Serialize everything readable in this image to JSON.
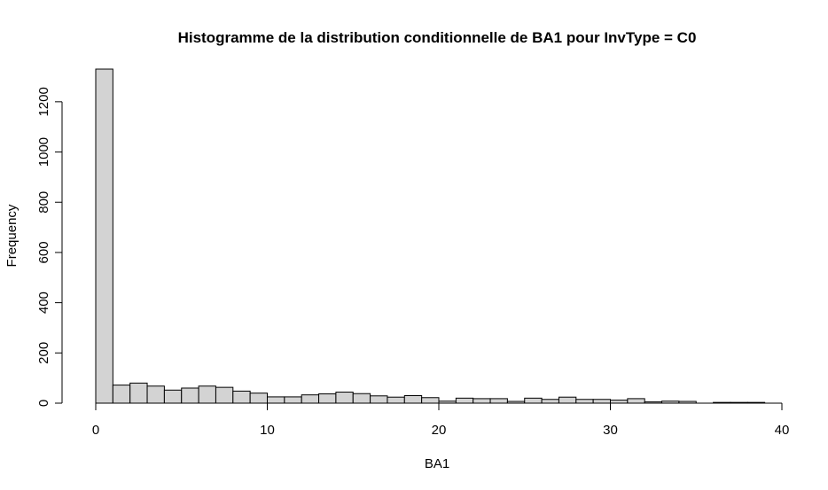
{
  "chart_data": {
    "type": "bar",
    "title": "Histogramme de la distribution conditionnelle de BA1 pour InvType = C0",
    "xlabel": "BA1",
    "ylabel": "Frequency",
    "bin_width": 1,
    "bin_starts": [
      0,
      1,
      2,
      3,
      4,
      5,
      6,
      7,
      8,
      9,
      10,
      11,
      12,
      13,
      14,
      15,
      16,
      17,
      18,
      19,
      20,
      21,
      22,
      23,
      24,
      25,
      26,
      27,
      28,
      29,
      30,
      31,
      32,
      33,
      34,
      35,
      36,
      37,
      38
    ],
    "values": [
      1330,
      72,
      80,
      68,
      52,
      60,
      68,
      63,
      48,
      40,
      25,
      25,
      33,
      37,
      44,
      38,
      29,
      24,
      30,
      22,
      8,
      20,
      18,
      18,
      7,
      20,
      15,
      24,
      15,
      15,
      12,
      18,
      5,
      8,
      7,
      0,
      3,
      3,
      3
    ],
    "xlim": [
      0,
      40
    ],
    "ylim": [
      0,
      1330
    ],
    "x_ticks": [
      0,
      10,
      20,
      30,
      40
    ],
    "y_ticks": [
      0,
      200,
      400,
      600,
      800,
      1000,
      1200
    ],
    "bar_color": "#d3d3d3",
    "grid": false
  }
}
